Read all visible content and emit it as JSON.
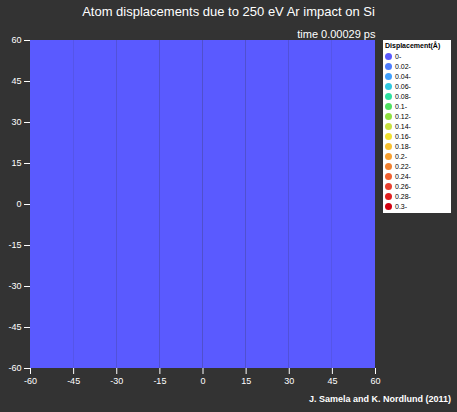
{
  "chart_data": {
    "type": "heatmap",
    "title": "Atom displacements due to 250 eV Ar impact on Si",
    "annotations": [
      "time 0.00029 ps",
      "J. Samela and K. Nordlund (2011)"
    ],
    "xlim": [
      -60,
      60
    ],
    "xticks": [
      -60,
      -45,
      -30,
      -15,
      0,
      15,
      30,
      45,
      60
    ],
    "ylim": [
      -60,
      60
    ],
    "yticks": [
      -60,
      -45,
      -30,
      -15,
      0,
      15,
      30,
      45,
      60
    ],
    "x_bins": [
      -60,
      -45,
      -30,
      -15,
      0,
      15,
      30,
      45,
      60
    ],
    "y_bins": [
      -60,
      -45,
      -30,
      -15,
      0,
      15,
      30,
      45,
      60
    ],
    "cells": [
      [
        0,
        0,
        0,
        0,
        0,
        0,
        0,
        0
      ],
      [
        0,
        0,
        0,
        0,
        0,
        0,
        0,
        0
      ],
      [
        0,
        0,
        0,
        0,
        0,
        0,
        0,
        0
      ],
      [
        0,
        0,
        0,
        0,
        0,
        0,
        0,
        0
      ],
      [
        0,
        0,
        0,
        0,
        0,
        0,
        0,
        0
      ],
      [
        0,
        0,
        0,
        0,
        0,
        0,
        0,
        0
      ],
      [
        0,
        0,
        0,
        0,
        0,
        0,
        0,
        0
      ],
      [
        0,
        0,
        0,
        0,
        0,
        0,
        0,
        0
      ]
    ],
    "colorbar": {
      "title": "Displacement(Å)",
      "ticks": [
        {
          "value": 0,
          "label": "0-"
        },
        {
          "value": 0.02,
          "label": "0.02-"
        },
        {
          "value": 0.04,
          "label": "0.04-"
        },
        {
          "value": 0.06,
          "label": "0.06-"
        },
        {
          "value": 0.08,
          "label": "0.08-"
        },
        {
          "value": 0.1,
          "label": "0.1-"
        },
        {
          "value": 0.12,
          "label": "0.12-"
        },
        {
          "value": 0.14,
          "label": "0.14-"
        },
        {
          "value": 0.16,
          "label": "0.16-"
        },
        {
          "value": 0.18,
          "label": "0.18-"
        },
        {
          "value": 0.2,
          "label": "0.2-"
        },
        {
          "value": 0.22,
          "label": "0.22-"
        },
        {
          "value": 0.24,
          "label": "0.24-"
        },
        {
          "value": 0.26,
          "label": "0.26-"
        },
        {
          "value": 0.28,
          "label": "0.28-"
        },
        {
          "value": 0.3,
          "label": "0.3-"
        }
      ],
      "colors": [
        "#5a5aff",
        "#4d7dff",
        "#3fa0ff",
        "#2fc8e0",
        "#2ee0a0",
        "#4fe060",
        "#90e040",
        "#c8e040",
        "#f0e030",
        "#f8c030",
        "#f8a030",
        "#f08030",
        "#f06030",
        "#e84030",
        "#e02020",
        "#d00010"
      ]
    }
  }
}
